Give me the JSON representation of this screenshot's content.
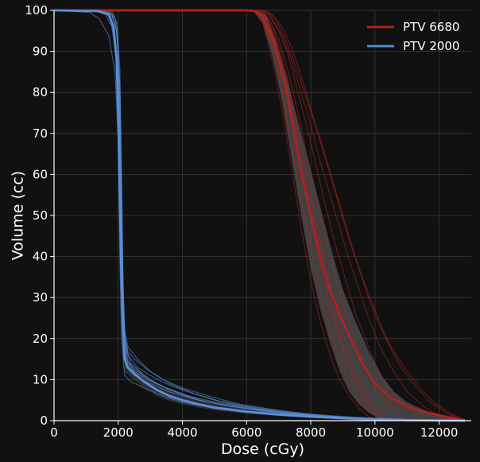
{
  "chart_data": {
    "type": "line",
    "title": "",
    "xlabel": "Dose (cGy)",
    "ylabel": "Volume (cc)",
    "xlim": [
      0,
      13000
    ],
    "ylim": [
      0,
      100
    ],
    "xticks": [
      0,
      2000,
      4000,
      6000,
      8000,
      10000,
      12000
    ],
    "yticks": [
      0,
      10,
      20,
      30,
      40,
      50,
      60,
      70,
      80,
      90,
      100
    ],
    "grid": true,
    "legend_position": "top-right",
    "background_color": "#111111",
    "series": [
      {
        "name": "PTV 6680",
        "color": "#b22222",
        "band_color": "#4a4a4a",
        "mean": {
          "x": [
            0,
            6000,
            6300,
            6500,
            6800,
            7000,
            7200,
            7400,
            7600,
            7800,
            8000,
            8200,
            8400,
            8600,
            8800,
            9000,
            9300,
            9600,
            10000,
            10500,
            11000,
            11500,
            12000,
            12500,
            12800
          ],
          "y": [
            100,
            100,
            99.8,
            98.5,
            93,
            88,
            82,
            74,
            65,
            57,
            50,
            43,
            37,
            32,
            28,
            24,
            19,
            14,
            9,
            5.5,
            3.5,
            2.2,
            1.3,
            0.5,
            0
          ]
        },
        "band_upper": {
          "x": [
            6300,
            6600,
            6900,
            7200,
            7500,
            7800,
            8100,
            8400,
            8700,
            9000,
            9400,
            9800,
            10200,
            10600,
            11000,
            11400,
            11800,
            12200,
            12600
          ],
          "y": [
            100,
            99,
            93,
            85,
            76,
            67,
            58,
            49,
            40,
            32,
            24,
            17,
            11,
            7,
            4.5,
            3,
            1.8,
            0.9,
            0.2
          ]
        },
        "band_lower": {
          "x": [
            6200,
            6500,
            6800,
            7100,
            7400,
            7700,
            8000,
            8300,
            8600,
            8900,
            9200,
            9500,
            9800,
            10100,
            10400
          ],
          "y": [
            100,
            97,
            89,
            78,
            64,
            50,
            37,
            27,
            19,
            12,
            7,
            4,
            2,
            0.6,
            0
          ]
        },
        "individual": [
          {
            "x": [
              0,
              6200,
              6500,
              6800,
              7100,
              7400,
              7700,
              8000,
              8300,
              8600,
              8900,
              9200,
              9500,
              9800,
              10100
            ],
            "y": [
              100,
              100,
              97,
              88,
              76,
              62,
              47,
              34,
              24,
              16,
              10,
              6,
              3,
              1,
              0
            ]
          },
          {
            "x": [
              0,
              6200,
              6500,
              6800,
              7100,
              7400,
              7700,
              8000,
              8300,
              8600,
              8900,
              9200,
              9500,
              9800,
              10100,
              10400
            ],
            "y": [
              100,
              100,
              98,
              91,
              80,
              67,
              54,
              42,
              31,
              22,
              15,
              9,
              5,
              2.5,
              1,
              0
            ]
          },
          {
            "x": [
              0,
              6300,
              6600,
              6900,
              7200,
              7500,
              7800,
              8100,
              8400,
              8700,
              9000,
              9300,
              9600,
              9900,
              10300
            ],
            "y": [
              100,
              100,
              98,
              92,
              82,
              70,
              57,
              45,
              34,
              25,
              17,
              11,
              6,
              3,
              0
            ]
          },
          {
            "x": [
              0,
              6300,
              6600,
              6900,
              7200,
              7500,
              7800,
              8100,
              8400,
              8700,
              9000,
              9300,
              9600,
              10000,
              10600
            ],
            "y": [
              100,
              100,
              99,
              94,
              86,
              75,
              63,
              51,
              40,
              30,
              21,
              14,
              9,
              4,
              0
            ]
          },
          {
            "x": [
              0,
              6400,
              6700,
              7000,
              7300,
              7600,
              7900,
              8200,
              8500,
              8800,
              9100,
              9400,
              9700,
              10000,
              10400,
              10900
            ],
            "y": [
              100,
              100,
              98,
              93,
              85,
              75,
              64,
              53,
              43,
              34,
              26,
              19,
              13,
              8,
              4,
              0
            ]
          },
          {
            "x": [
              0,
              6400,
              6700,
              7000,
              7300,
              7600,
              7900,
              8200,
              8500,
              8800,
              9100,
              9400,
              9700,
              10000,
              10400,
              11000,
              11600
            ],
            "y": [
              100,
              100,
              99,
              95,
              89,
              80,
              71,
              61,
              51,
              42,
              34,
              26,
              20,
              14,
              8,
              3,
              0
            ]
          },
          {
            "x": [
              0,
              6500,
              6800,
              7100,
              7400,
              7700,
              8000,
              8300,
              8600,
              8900,
              9200,
              9500,
              9800,
              10100,
              10500,
              11000,
              11600,
              12200
            ],
            "y": [
              100,
              100,
              98,
              94,
              88,
              80,
              72,
              63,
              55,
              47,
              39,
              32,
              25,
              19,
              13,
              7,
              3,
              0
            ]
          },
          {
            "x": [
              0,
              6500,
              6800,
              7100,
              7400,
              7700,
              8000,
              8300,
              8600,
              8900,
              9200,
              9500,
              9800,
              10100,
              10400,
              10800,
              11300,
              11800,
              12300,
              12800
            ],
            "y": [
              100,
              100,
              99,
              96,
              91,
              84,
              76,
              68,
              60,
              52,
              44,
              37,
              30,
              24,
              19,
              13,
              8,
              4,
              1.5,
              0
            ]
          },
          {
            "x": [
              0,
              6600,
              6900,
              7200,
              7500,
              7800,
              8100,
              8400,
              8700,
              9000,
              9300,
              9600,
              9900,
              10200,
              10500,
              10900,
              11400,
              11900,
              12400,
              12900
            ],
            "y": [
              100,
              100,
              98,
              93,
              87,
              80,
              73,
              66,
              58,
              50,
              42,
              35,
              29,
              23,
              18,
              13,
              8,
              4,
              1.5,
              0
            ]
          },
          {
            "x": [
              0,
              6300,
              6600,
              6900,
              7200,
              7500,
              7800,
              8100,
              8400,
              8700,
              9000,
              9300,
              9600,
              9900,
              10200,
              10500
            ],
            "y": [
              100,
              100,
              98,
              93,
              84,
              72,
              60,
              48,
              37,
              27,
              18,
              12,
              7,
              3.5,
              1.2,
              0
            ]
          }
        ]
      },
      {
        "name": "PTV 2000",
        "color": "#5b8fd9",
        "mean": {
          "x": [
            0,
            1400,
            1700,
            1850,
            1950,
            2000,
            2050,
            2100,
            2150,
            2200,
            2300,
            2500,
            2800,
            3200,
            3600,
            4000,
            4500,
            5000,
            6000,
            7000,
            8000,
            9000,
            10000,
            11000,
            12000,
            12800
          ],
          "y": [
            100,
            99.8,
            99,
            96,
            88,
            75,
            55,
            35,
            22,
            15,
            13,
            11.5,
            9.5,
            7.5,
            6,
            5,
            4,
            3.2,
            2.2,
            1.5,
            1,
            0.6,
            0.3,
            0.15,
            0.05,
            0
          ]
        },
        "band_upper": {
          "x": [
            0,
            1500,
            1800,
            1900,
            2000,
            2050,
            2100,
            2150,
            2200,
            2400,
            2800,
            3200,
            3600,
            4000,
            4500,
            5000,
            6000,
            7000,
            8000,
            9000,
            10000,
            11000,
            12000,
            12800
          ],
          "y": [
            100,
            99.8,
            99,
            96,
            85,
            68,
            45,
            27,
            18,
            14,
            11.5,
            9,
            7.5,
            6.2,
            5,
            4,
            2.8,
            2,
            1.3,
            0.8,
            0.4,
            0.2,
            0.1,
            0
          ]
        },
        "band_lower": {
          "x": [
            0,
            1400,
            1700,
            1850,
            1950,
            2000,
            2050,
            2100,
            2150,
            2200,
            2400,
            2800,
            3200,
            3600,
            4000,
            4500,
            5000,
            6000,
            7000,
            8000,
            9000,
            10000,
            10500
          ],
          "y": [
            100,
            99.8,
            98.5,
            94,
            85,
            70,
            48,
            28,
            16,
            12,
            10.5,
            8,
            6,
            4.8,
            4,
            3.2,
            2.5,
            1.7,
            1.1,
            0.7,
            0.35,
            0.1,
            0
          ]
        },
        "individual": [
          {
            "x": [
              0,
              1100,
              1400,
              1700,
              1900,
              2000,
              2050,
              2100,
              2200,
              2400,
              2800,
              3400,
              4000,
              5000,
              6000,
              7000,
              8000,
              9000,
              10000,
              10500
            ],
            "y": [
              100,
              99.5,
              98,
              94,
              85,
              68,
              40,
              20,
              11,
              9.5,
              8,
              6,
              4.5,
              3,
              2,
              1.3,
              0.8,
              0.4,
              0.1,
              0
            ]
          },
          {
            "x": [
              0,
              1300,
              1600,
              1800,
              1950,
              2050,
              2100,
              2150,
              2250,
              2500,
              3000,
              3600,
              4200,
              5000,
              6000,
              7000,
              8000,
              9000,
              10000,
              11000
            ],
            "y": [
              100,
              99.8,
              99,
              96,
              88,
              62,
              38,
              22,
              15,
              12.5,
              10,
              7.5,
              5.8,
              4.2,
              3,
              2,
              1.3,
              0.8,
              0.4,
              0
            ]
          },
          {
            "x": [
              0,
              1500,
              1800,
              1950,
              2050,
              2100,
              2150,
              2200,
              2400,
              2800,
              3200,
              3800,
              4500,
              5500,
              6500,
              7500,
              8500,
              9500,
              10500
            ],
            "y": [
              100,
              99.8,
              99,
              95,
              80,
              55,
              30,
              19,
              14,
              11,
              9,
              7,
              5,
              3.5,
              2.3,
              1.5,
              0.9,
              0.4,
              0
            ]
          },
          {
            "x": [
              0,
              1600,
              1850,
              1950,
              2050,
              2100,
              2150,
              2200,
              2300,
              2600,
              3000,
              3500,
              4000,
              5000,
              6000,
              7000,
              8000,
              9000,
              10000,
              11000,
              12000
            ],
            "y": [
              100,
              99.8,
              99,
              97,
              86,
              62,
              35,
              22,
              16,
              13,
              11,
              9,
              7.5,
              5,
              3.5,
              2.4,
              1.6,
              1,
              0.6,
              0.3,
              0
            ]
          },
          {
            "x": [
              0,
              1700,
              1900,
              2000,
              2050,
              2100,
              2150,
              2200,
              2300,
              2500,
              2900,
              3400,
              4000,
              4800,
              5800,
              7000,
              8000,
              9000,
              10000
            ],
            "y": [
              100,
              99.8,
              98,
              90,
              70,
              45,
              28,
              20,
              17,
              15,
              12.5,
              10,
              8,
              6,
              4,
              2.5,
              1.5,
              0.8,
              0
            ]
          },
          {
            "x": [
              0,
              1400,
              1700,
              1900,
              2000,
              2050,
              2100,
              2150,
              2250,
              2500,
              3000,
              3600,
              4500,
              5500,
              6500,
              7500,
              8500,
              9500,
              10500,
              11500
            ],
            "y": [
              100,
              99.8,
              99,
              94,
              80,
              60,
              35,
              20,
              13,
              11,
              9,
              7,
              5,
              3.5,
              2.5,
              1.6,
              1,
              0.5,
              0.2,
              0
            ]
          },
          {
            "x": [
              0,
              1800,
              1950,
              2000,
              2050,
              2100,
              2150,
              2200,
              2300,
              2600,
              3000,
              3600,
              4400,
              5400,
              6400,
              7400,
              8400,
              9400,
              10400
            ],
            "y": [
              100,
              99.8,
              97,
              90,
              72,
              48,
              30,
              22,
              18,
              15,
              12,
              9,
              6.5,
              4.2,
              2.8,
              1.8,
              1,
              0.5,
              0
            ]
          },
          {
            "x": [
              0,
              1500,
              1800,
              1950,
              2050,
              2100,
              2150,
              2200,
              2300,
              2500,
              2900,
              3500,
              4200,
              5200,
              6200,
              7200,
              8200,
              9200,
              10200,
              11200,
              12200
            ],
            "y": [
              100,
              99.8,
              99,
              95,
              82,
              58,
              33,
              20,
              14,
              12,
              10,
              8,
              6,
              4.2,
              3,
              2,
              1.3,
              0.8,
              0.4,
              0.1,
              0
            ]
          }
        ]
      }
    ]
  }
}
